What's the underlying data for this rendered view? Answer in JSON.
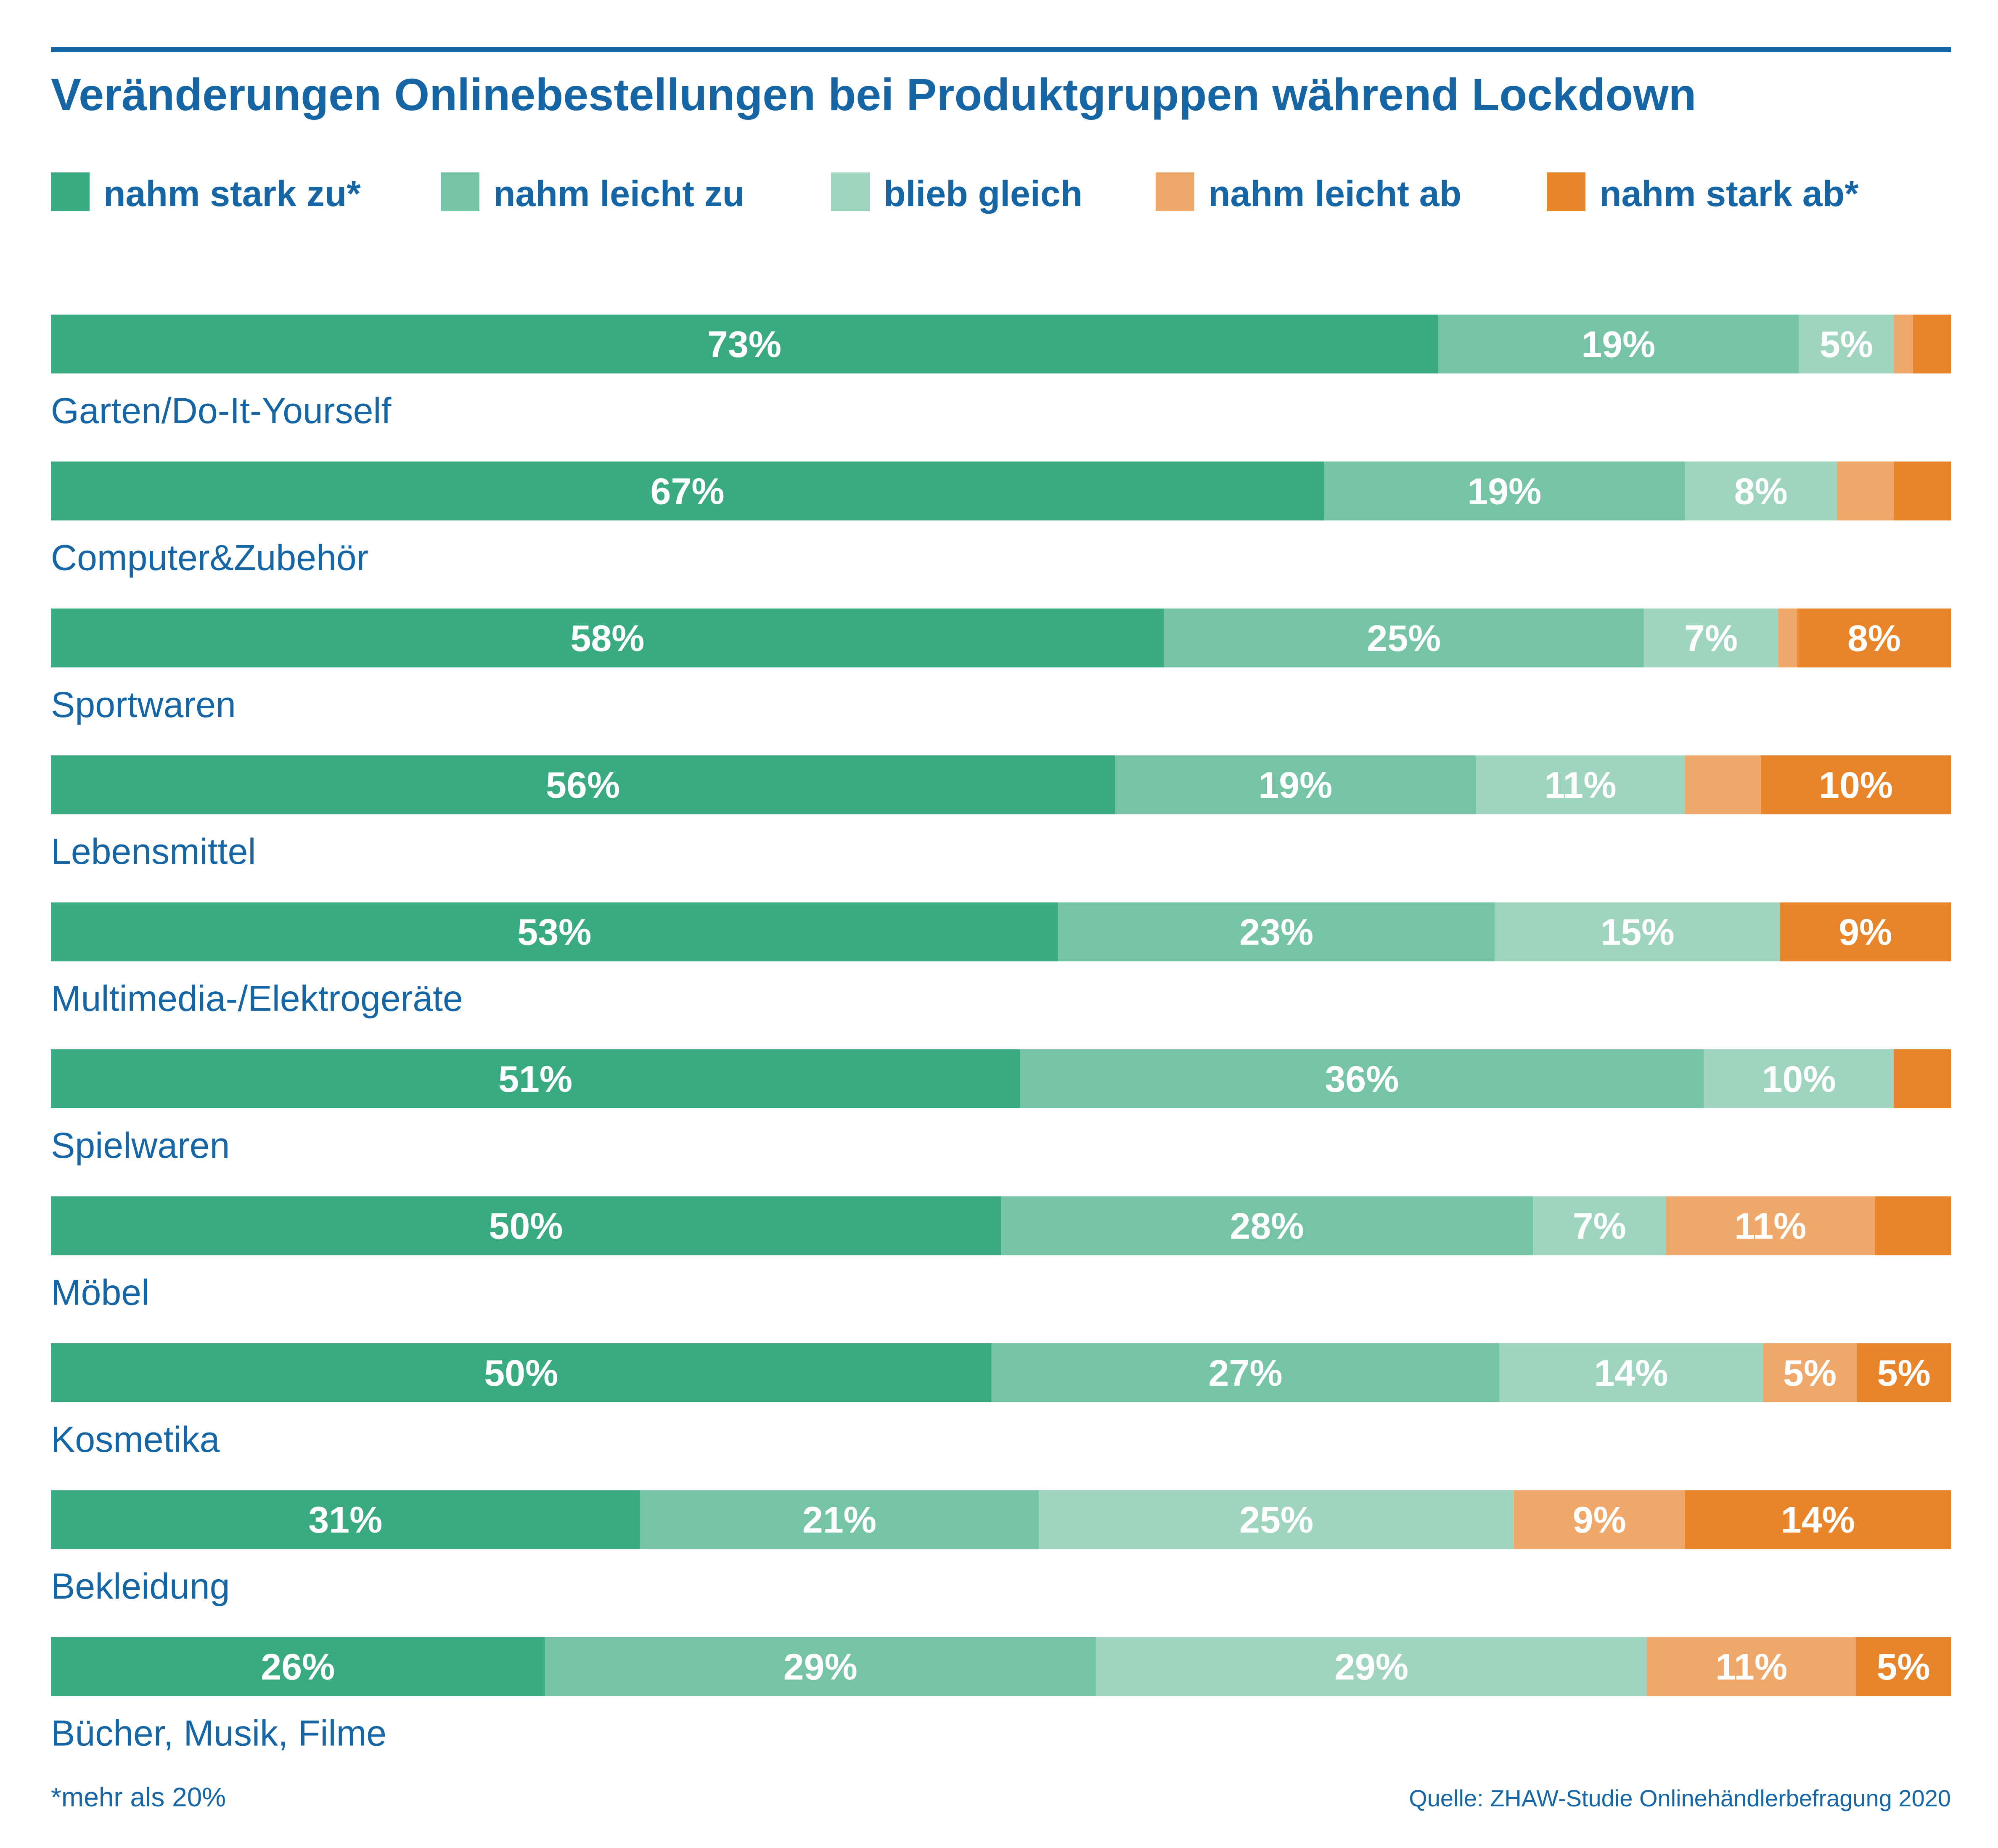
{
  "chart_data": {
    "type": "bar",
    "orientation": "horizontal",
    "stacked": true,
    "title": "Veränderungen Onlinebestellungen bei Produktgruppen während Lockdown",
    "categories": [
      "Garten/Do-It-Yourself",
      "Computer&Zubehör",
      "Sportwaren",
      "Lebensmittel",
      "Multimedia-/Elektrogeräte",
      "Spielwaren",
      "Möbel",
      "Kosmetika",
      "Bekleidung",
      "Bücher, Musik, Filme"
    ],
    "series": [
      {
        "name": "nahm stark zu*",
        "color": "#3aab80",
        "values": [
          73,
          67,
          58,
          56,
          53,
          51,
          50,
          50,
          31,
          26
        ],
        "labels": [
          "73%",
          "67%",
          "58%",
          "56%",
          "53%",
          "51%",
          "50%",
          "50%",
          "31%",
          "26%"
        ]
      },
      {
        "name": "nahm leicht zu",
        "color": "#76c4a6",
        "values": [
          19,
          19,
          25,
          19,
          23,
          36,
          28,
          27,
          21,
          29
        ],
        "labels": [
          "19%",
          "19%",
          "25%",
          "19%",
          "23%",
          "36%",
          "28%",
          "27%",
          "21%",
          "29%"
        ]
      },
      {
        "name": "blieb gleich",
        "color": "#9fd5bf",
        "values": [
          5,
          8,
          7,
          11,
          15,
          10,
          7,
          14,
          25,
          29
        ],
        "labels": [
          "5%",
          "8%",
          "7%",
          "11%",
          "15%",
          "10%",
          "7%",
          "14%",
          "25%",
          "29%"
        ]
      },
      {
        "name": "nahm leicht ab",
        "color": "#f0a86a",
        "values": [
          1,
          3,
          1,
          4,
          0,
          0,
          11,
          5,
          9,
          11
        ],
        "labels": [
          "",
          "",
          "",
          "",
          "",
          "",
          "11%",
          "5%",
          "9%",
          "11%"
        ]
      },
      {
        "name": "nahm stark ab*",
        "color": "#e8842a",
        "values": [
          2,
          3,
          8,
          10,
          9,
          3,
          4,
          5,
          14,
          5
        ],
        "labels": [
          "",
          "",
          "8%",
          "10%",
          "9%",
          "",
          "",
          "5%",
          "14%",
          "5%"
        ]
      }
    ],
    "xlim": [
      0,
      100
    ],
    "legend_position": "top",
    "grid": false
  },
  "footnote": "*mehr als 20%",
  "source": "Quelle: ZHAW-Studie Onlinehändlerbefragung 2020",
  "colors": {
    "title": "#1666a6",
    "rule": "#1666a6",
    "label_on_bar": "#ffffff"
  }
}
